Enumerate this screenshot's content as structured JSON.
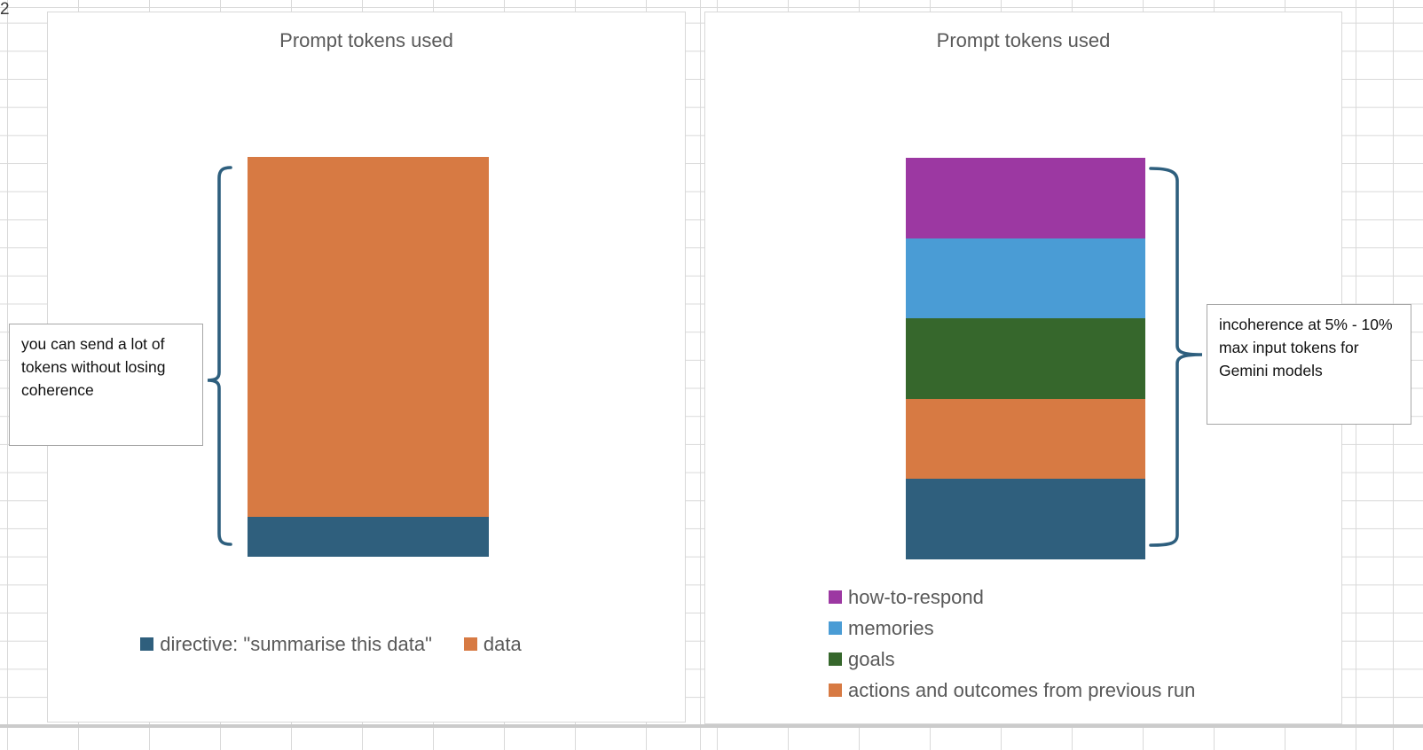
{
  "spreadsheet": {
    "row_header_label": "2",
    "gridline_color": "#d9d9d9"
  },
  "shapes": {
    "brace_color": "#2E5F7E",
    "callout_border_color": "#A6A6A6"
  },
  "callouts": [
    {
      "text": "you can send a lot of tokens without losing coherence"
    },
    {
      "text": "incoherence at 5% - 10% max input tokens for Gemini models"
    }
  ],
  "charts": [
    {
      "title": "Prompt tokens used",
      "legend": [
        {
          "label": "directive: \"summarise this data\"",
          "color": "#2F5F7D"
        },
        {
          "label": "data",
          "color": "#D77A43"
        }
      ],
      "chart_data": {
        "type": "bar",
        "subtype": "stacked-single-column",
        "title": "Prompt tokens used",
        "categories": [
          ""
        ],
        "axes_visible": false,
        "legend_position": "bottom",
        "segments_top_to_bottom": [
          {
            "label": "data",
            "color": "#D77A43",
            "pct": 90
          },
          {
            "label": "directive: \"summarise this data\"",
            "color": "#2F5F7D",
            "pct": 10
          }
        ]
      }
    },
    {
      "title": "Prompt tokens used",
      "legend": [
        {
          "label": "how-to-respond",
          "color": "#9C38A2"
        },
        {
          "label": "memories",
          "color": "#4A9CD5"
        },
        {
          "label": "goals",
          "color": "#36672C"
        },
        {
          "label": "actions and outcomes from previous run",
          "color": "#D77A43"
        }
      ],
      "chart_data": {
        "type": "bar",
        "subtype": "stacked-single-column",
        "title": "Prompt tokens used",
        "categories": [
          ""
        ],
        "axes_visible": false,
        "legend_position": "bottom-left",
        "segments_top_to_bottom": [
          {
            "label": "how-to-respond",
            "color": "#9C38A2",
            "pct": 20
          },
          {
            "label": "memories",
            "color": "#4A9CD5",
            "pct": 20
          },
          {
            "label": "goals",
            "color": "#36672C",
            "pct": 20
          },
          {
            "label": "actions and outcomes from previous run",
            "color": "#D77A43",
            "pct": 20
          },
          {
            "label": "",
            "color": "#2F5F7D",
            "pct": 20
          }
        ]
      }
    }
  ]
}
